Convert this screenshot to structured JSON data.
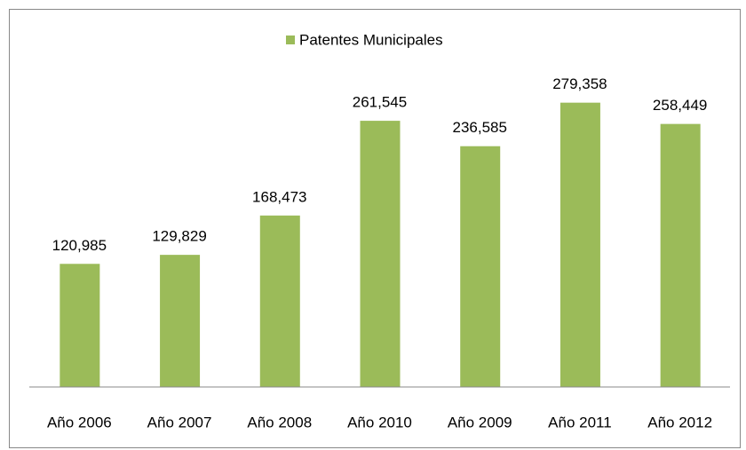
{
  "chart_data": {
    "type": "bar",
    "legend": "top",
    "series": [
      {
        "name": "Patentes Municipales",
        "color": "#9bbb59",
        "values": [
          120985,
          129829,
          168473,
          261545,
          236585,
          279358,
          258449
        ],
        "value_labels": [
          "120,985",
          "129,829",
          "168,473",
          "261,545",
          "236,585",
          "279,358",
          "258,449"
        ]
      }
    ],
    "categories": [
      "Año 2006",
      "Año 2007",
      "Año 2008",
      "Año 2010",
      "Año 2009",
      "Año 2011",
      "Año 2012"
    ],
    "ylim": [
      0,
      300000
    ]
  }
}
